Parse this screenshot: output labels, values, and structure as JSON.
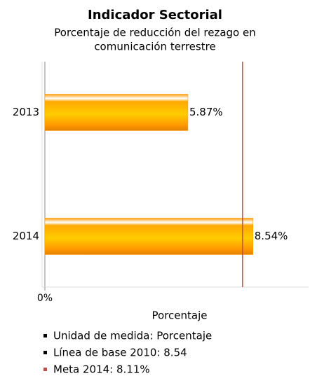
{
  "chart_data": {
    "type": "barh",
    "title": "Indicador Sectorial",
    "subtitle": [
      "Porcentaje de reducción del rezago en",
      "comunicación terrestre"
    ],
    "categories": [
      "2013",
      "2014"
    ],
    "values": [
      5.87,
      8.54
    ],
    "value_labels": [
      "5.87%",
      "8.54%"
    ],
    "color": "#ff9900",
    "xlim": [
      0,
      10.82
    ],
    "xticks": [
      {
        "value": 0,
        "label": "0%"
      }
    ],
    "xlabel": "Porcentaje",
    "reference_line": {
      "value": 8.11,
      "color": "#c0504d"
    },
    "notes": [
      {
        "text": "Unidad de medida: Porcentaje",
        "color": "#000000"
      },
      {
        "text": "Línea de base 2010: 8.54",
        "color": "#000000"
      },
      {
        "text": "Meta 2014: 8.11%",
        "color": "#c0504d"
      }
    ]
  }
}
